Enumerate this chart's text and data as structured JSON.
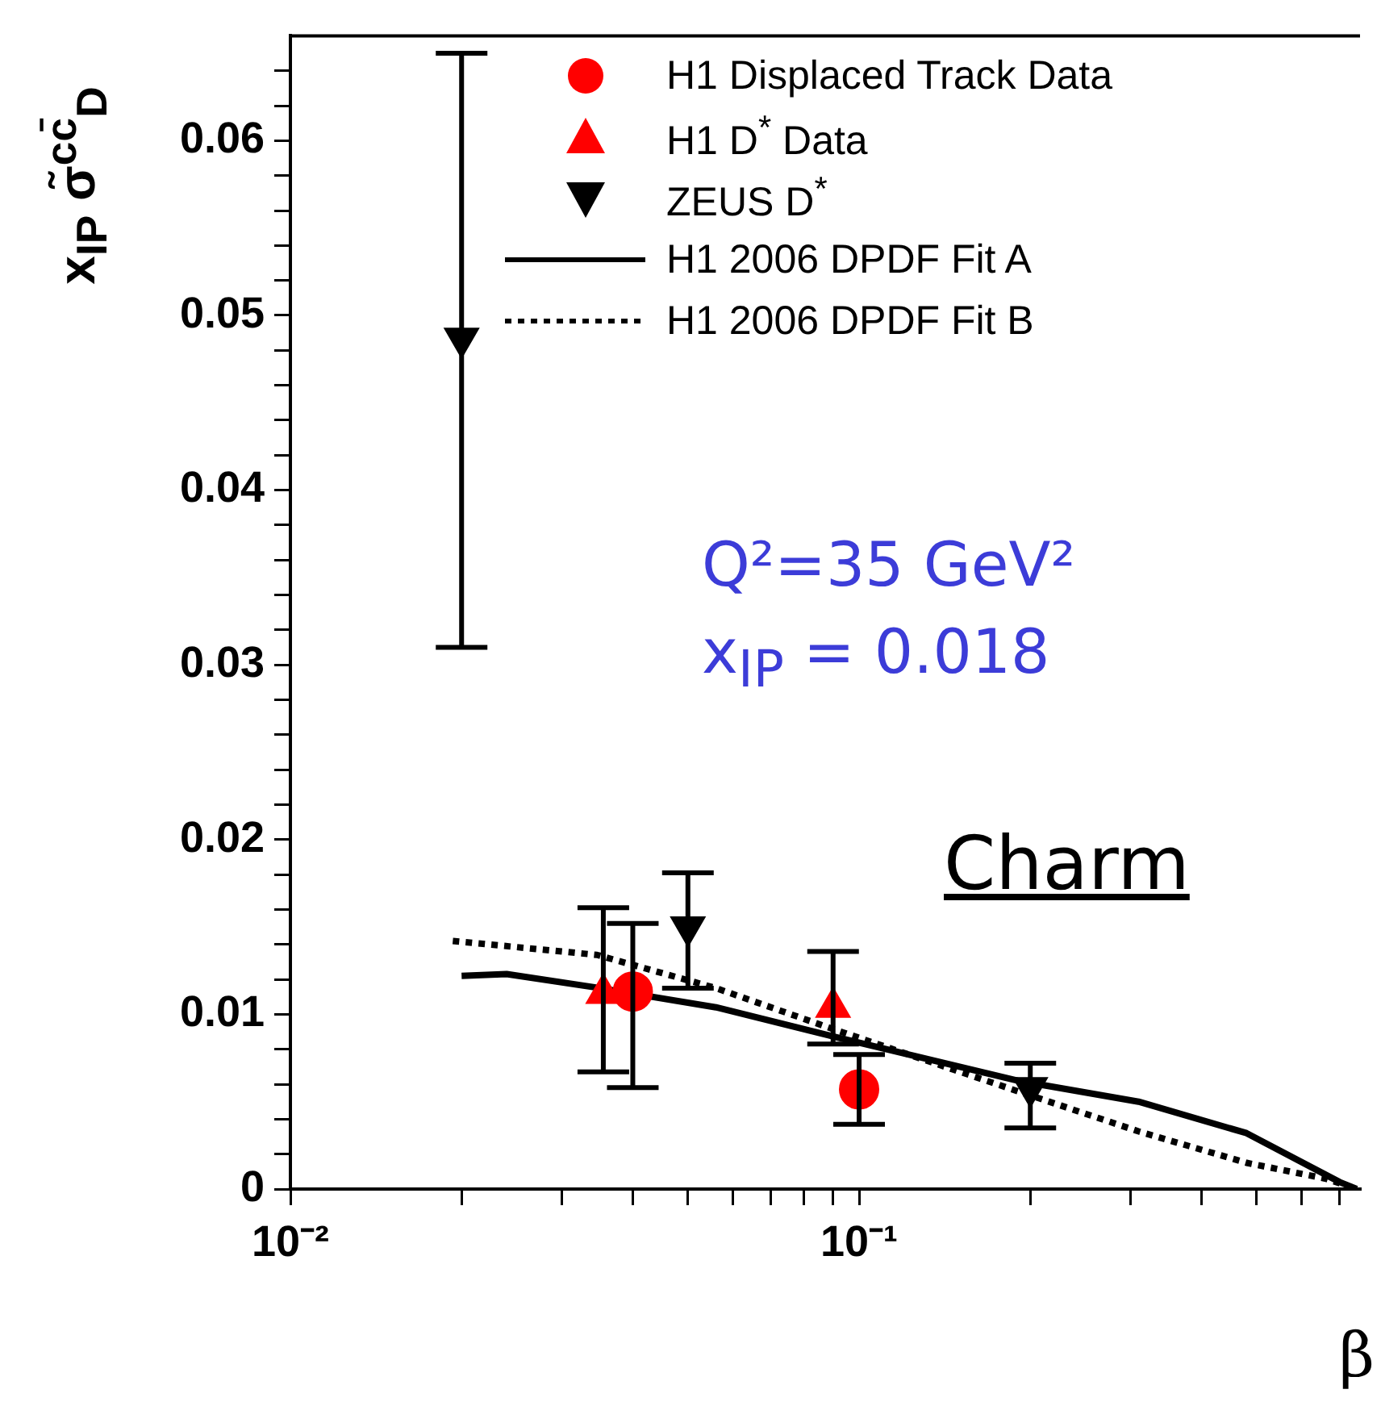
{
  "chart_data": {
    "type": "scatter",
    "ylabel": "x$_{IP}$ σ̃$^{cc̄}$$_{D}$",
    "xlabel": "β",
    "annotations": [
      "Q²=35 GeV²",
      "x$_{IP}$ = 0.018",
      "Charm"
    ],
    "log": "x",
    "legend": "top right",
    "grid": false,
    "xlim": [
      0.01,
      0.76
    ],
    "xticks": [
      {
        "value": 0.01,
        "label": "10⁻²"
      },
      {
        "value": 0.02,
        "label": null
      },
      {
        "value": 0.03,
        "label": null
      },
      {
        "value": 0.04,
        "label": null
      },
      {
        "value": 0.05,
        "label": null
      },
      {
        "value": 0.06,
        "label": null
      },
      {
        "value": 0.07,
        "label": null
      },
      {
        "value": 0.08,
        "label": null
      },
      {
        "value": 0.09,
        "label": null
      },
      {
        "value": 0.1,
        "label": "10⁻¹"
      },
      {
        "value": 0.2,
        "label": null
      },
      {
        "value": 0.3,
        "label": null
      },
      {
        "value": 0.4,
        "label": null
      },
      {
        "value": 0.5,
        "label": null
      },
      {
        "value": 0.6,
        "label": null
      },
      {
        "value": 0.7,
        "label": null
      }
    ],
    "ylim": [
      0,
      0.066
    ],
    "yticks": [
      0,
      {
        "value": 0.002,
        "label": null
      },
      {
        "value": 0.004,
        "label": null
      },
      {
        "value": 0.006,
        "label": null
      },
      {
        "value": 0.008,
        "label": null
      },
      0.01,
      {
        "value": 0.012,
        "label": null
      },
      {
        "value": 0.014,
        "label": null
      },
      {
        "value": 0.016,
        "label": null
      },
      {
        "value": 0.018,
        "label": null
      },
      0.02,
      {
        "value": 0.022,
        "label": null
      },
      {
        "value": 0.024,
        "label": null
      },
      {
        "value": 0.026,
        "label": null
      },
      {
        "value": 0.028,
        "label": null
      },
      0.03,
      {
        "value": 0.032,
        "label": null
      },
      {
        "value": 0.034,
        "label": null
      },
      {
        "value": 0.036,
        "label": null
      },
      {
        "value": 0.038,
        "label": null
      },
      0.04,
      {
        "value": 0.042,
        "label": null
      },
      {
        "value": 0.044,
        "label": null
      },
      {
        "value": 0.046,
        "label": null
      },
      {
        "value": 0.048,
        "label": null
      },
      0.05,
      {
        "value": 0.052,
        "label": null
      },
      {
        "value": 0.054,
        "label": null
      },
      {
        "value": 0.056,
        "label": null
      },
      {
        "value": 0.058,
        "label": null
      },
      0.06,
      {
        "value": 0.062,
        "label": null
      },
      {
        "value": 0.064,
        "label": null
      }
    ],
    "series": [
      {
        "name": "H1 Displaced Track Data",
        "marker": "circle",
        "color": "#ff0000",
        "x": [
          0.04,
          0.1
        ],
        "values": [
          0.0113,
          0.0057
        ],
        "errors": [
          [
            0.0058,
            0.0152
          ],
          [
            0.0037,
            0.0077
          ]
        ]
      },
      {
        "name": "H1 D$^{*}$ Data",
        "marker": "triangle",
        "color": "#ff0000",
        "x": [
          0.0355,
          0.09
        ],
        "values": [
          0.0112,
          0.0104
        ],
        "errors": [
          [
            0.0067,
            0.0161
          ],
          [
            0.0083,
            0.0136
          ]
        ]
      },
      {
        "name": "ZEUS D$^{*}$",
        "marker": "triangle-down",
        "color": "#000000",
        "x": [
          0.02,
          0.05,
          0.2
        ],
        "values": [
          0.0487,
          0.015,
          0.0058
        ],
        "errors": [
          [
            0.031,
            0.065
          ],
          [
            0.0115,
            0.0181
          ],
          [
            0.0035,
            0.0072
          ]
        ]
      },
      {
        "name": "H1 2006 DPDF Fit A",
        "type": "line",
        "marker": "none",
        "line_style": "solid",
        "color": "#000000",
        "x": [
          0.02,
          0.024,
          0.035,
          0.056,
          0.091,
          0.19,
          0.31,
          0.48,
          0.7,
          0.75
        ],
        "values": [
          0.0122,
          0.0123,
          0.0115,
          0.0104,
          0.0087,
          0.0062,
          0.005,
          0.0032,
          0.0004,
          0
        ]
      },
      {
        "name": "H1 2006 DPDF Fit B",
        "type": "line",
        "marker": "none",
        "line_style": "dotted",
        "color": "#000000",
        "x": [
          0.0193,
          0.0346,
          0.056,
          0.091,
          0.19,
          0.31,
          0.48,
          0.66,
          0.75
        ],
        "values": [
          0.0142,
          0.0134,
          0.0115,
          0.0091,
          0.0056,
          0.0033,
          0.0015,
          0.0006,
          0
        ]
      }
    ]
  }
}
